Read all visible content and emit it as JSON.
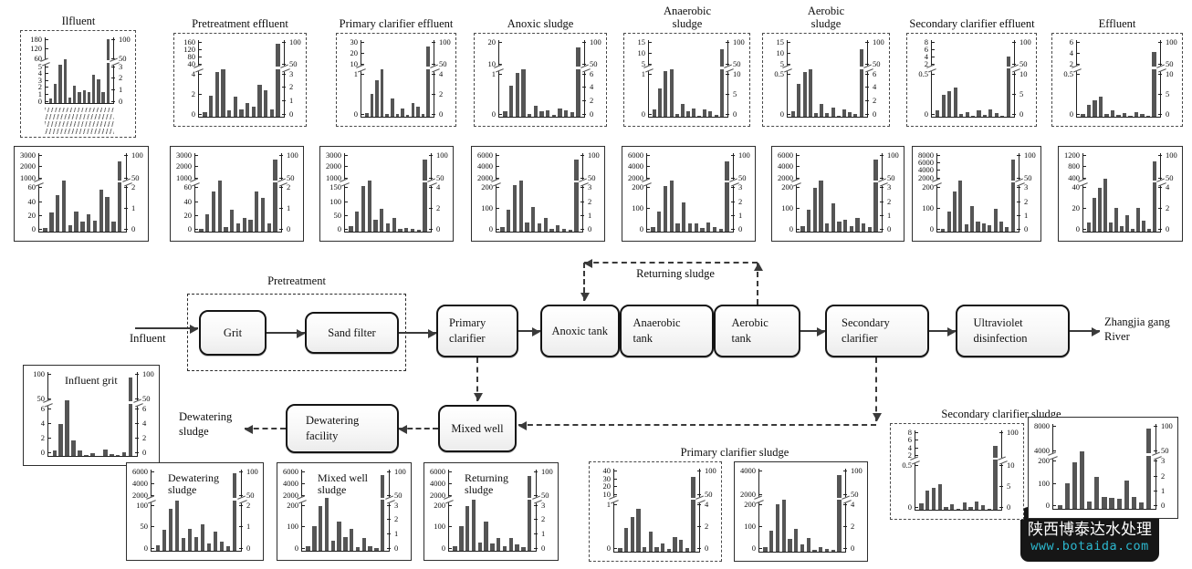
{
  "flow": {
    "influent_label": "Influent",
    "pretreatment_label": "Pretreatment",
    "returning_sludge_label": "Returning sludge",
    "dewatering_sludge_label": "Dewatering sludge",
    "river_label": "Zhangjia gang River",
    "boxes": [
      {
        "id": "grit",
        "label": "Grit"
      },
      {
        "id": "sand-filter",
        "label": "Sand filter"
      },
      {
        "id": "primary-clarifier",
        "label": "Primary clarifier"
      },
      {
        "id": "anoxic-tank",
        "label": "Anoxic tank"
      },
      {
        "id": "anaerobic-tank",
        "label": "Anaerobic tank"
      },
      {
        "id": "aerobic-tank",
        "label": "Aerobic tank"
      },
      {
        "id": "secondary-clarifier",
        "label": "Secondary clarifier"
      },
      {
        "id": "uv",
        "label": "Ultraviolet disinfection"
      },
      {
        "id": "mixed-well",
        "label": "Mixed well"
      },
      {
        "id": "dewatering-facility",
        "label": "Dewatering facility"
      }
    ]
  },
  "group_labels": {
    "primary": "Primary clarifier sludge",
    "secondary": "Secondary clarifier sludge"
  },
  "watermark": {
    "line1": "陕西博泰达水处理",
    "line2": "www.botaida.com",
    "accent_color": "#2cb8cf",
    "bg_color": "#161616"
  },
  "chart_data": {
    "type": "bar",
    "bar_color": "#555555",
    "note": "Each panel shows 13 compound bars with a broken (split) y-axis; left axis = concentration, right axis = removal/percent scale ending at 100. X tick labels are illegible compound names in the source figure. Bar values are fractions of plot height.",
    "panels": [
      {
        "id": "t1",
        "title": "Ilfluent",
        "place": "above",
        "border": "dashed",
        "x_labels": true,
        "left_upper": [
          "180",
          "120",
          "60"
        ],
        "left_lower": [
          "5",
          "4",
          "3",
          "2",
          "1",
          "0"
        ],
        "right_upper": [
          "100",
          "50"
        ],
        "right_lower": [
          "3",
          "2",
          "1",
          "0"
        ],
        "bars": [
          0.07,
          0.29,
          0.59,
          0.66,
          0.09,
          0.26,
          0.17,
          0.2,
          0.16,
          0.43,
          0.36,
          0.16,
          0.97
        ]
      },
      {
        "id": "t2",
        "title": "Pretreatment effluent",
        "place": "above",
        "border": "dashed",
        "left_upper": [
          "160",
          "120",
          "80",
          "40"
        ],
        "left_lower": [
          "4",
          "2",
          "0"
        ],
        "right_upper": [
          "100",
          "50"
        ],
        "right_lower": [
          "3",
          "2",
          "1",
          "0"
        ],
        "bars": [
          0.06,
          0.27,
          0.58,
          0.62,
          0.08,
          0.26,
          0.1,
          0.18,
          0.13,
          0.42,
          0.34,
          0.1,
          0.95
        ]
      },
      {
        "id": "t3",
        "title": "Primary clarifier effluent",
        "place": "above",
        "border": "dashed",
        "left_upper": [
          "30",
          "20",
          "10"
        ],
        "left_lower": [
          "1",
          "0"
        ],
        "right_upper": [
          "100",
          "50"
        ],
        "right_lower": [
          "4",
          "2",
          "0"
        ],
        "bars": [
          0.05,
          0.3,
          0.48,
          0.62,
          0.04,
          0.24,
          0.04,
          0.11,
          0.02,
          0.18,
          0.13,
          0.04,
          0.92
        ]
      },
      {
        "id": "t4",
        "title": "Anoxic sludge",
        "place": "above",
        "border": "dashed",
        "left_upper": [
          "20",
          "10"
        ],
        "left_lower": [
          "1",
          "0"
        ],
        "right_upper": [
          "100",
          "50"
        ],
        "right_lower": [
          "6",
          "4",
          "2",
          "0"
        ],
        "bars": [
          0.07,
          0.41,
          0.57,
          0.62,
          0.04,
          0.14,
          0.07,
          0.08,
          0.02,
          0.11,
          0.08,
          0.06,
          0.9
        ]
      },
      {
        "id": "t5",
        "title": "Anaerobic sludge",
        "place": "above",
        "border": "dashed",
        "left_upper": [
          "15",
          "10",
          "5"
        ],
        "left_lower": [
          "1",
          "0"
        ],
        "right_upper": [
          "100",
          "50"
        ],
        "right_lower": [
          "10",
          "5",
          "0"
        ],
        "bars": [
          0.09,
          0.37,
          0.59,
          0.62,
          0.04,
          0.17,
          0.07,
          0.11,
          0.01,
          0.09,
          0.07,
          0.02,
          0.88
        ]
      },
      {
        "id": "t6",
        "title": "Aerobic sludge",
        "place": "above",
        "border": "dashed",
        "left_upper": [
          "15",
          "10",
          "5"
        ],
        "left_lower": [
          "0.5",
          "0"
        ],
        "right_upper": [
          "100",
          "50"
        ],
        "right_lower": [
          "6",
          "4",
          "2",
          "0"
        ],
        "bars": [
          0.07,
          0.43,
          0.58,
          0.62,
          0.05,
          0.17,
          0.05,
          0.12,
          0.01,
          0.1,
          0.06,
          0.03,
          0.88
        ]
      },
      {
        "id": "t7",
        "title": "Secondary clarifier effluent",
        "place": "above",
        "border": "dashed",
        "left_upper": [
          "8",
          "6",
          "4",
          "2"
        ],
        "left_lower": [
          "0.5",
          "0"
        ],
        "right_upper": [
          "100",
          "50"
        ],
        "right_lower": [
          "10",
          "5",
          "0"
        ],
        "bars": [
          0.08,
          0.28,
          0.33,
          0.38,
          0.03,
          0.06,
          0.01,
          0.08,
          0.02,
          0.1,
          0.05,
          0.01,
          0.78
        ]
      },
      {
        "id": "t8",
        "title": "Effluent",
        "place": "above",
        "border": "dashed",
        "left_upper": [
          "6",
          "4",
          "2"
        ],
        "left_lower": [
          "0.5",
          "0"
        ],
        "right_upper": [
          "100",
          "50"
        ],
        "right_lower": [
          "10",
          "5",
          "0"
        ],
        "bars": [
          0.03,
          0.16,
          0.22,
          0.26,
          0.03,
          0.08,
          0.02,
          0.05,
          0.01,
          0.06,
          0.03,
          0.01,
          0.85
        ]
      },
      {
        "id": "r1",
        "border": "solid",
        "left_upper": [
          "3000",
          "2000",
          "1000"
        ],
        "left_lower": [
          "60",
          "40",
          "20",
          "0"
        ],
        "right_upper": [
          "100",
          "50"
        ],
        "right_lower": [
          "2",
          "1",
          "0"
        ],
        "bars": [
          0.05,
          0.24,
          0.47,
          0.65,
          0.08,
          0.26,
          0.13,
          0.22,
          0.14,
          0.54,
          0.44,
          0.13,
          0.9
        ]
      },
      {
        "id": "r2",
        "border": "solid",
        "left_upper": [
          "3000",
          "2000",
          "1000"
        ],
        "left_lower": [
          "60",
          "40",
          "20",
          "0"
        ],
        "right_upper": [
          "100",
          "50"
        ],
        "right_lower": [
          "2",
          "1",
          "0"
        ],
        "bars": [
          0.04,
          0.22,
          0.51,
          0.65,
          0.06,
          0.28,
          0.11,
          0.18,
          0.15,
          0.51,
          0.43,
          0.11,
          0.92
        ]
      },
      {
        "id": "r3",
        "border": "solid",
        "left_upper": [
          "3000",
          "2000",
          "1000"
        ],
        "left_lower": [
          "150",
          "100",
          "50",
          "0"
        ],
        "right_upper": [
          "100",
          "50"
        ],
        "right_lower": [
          "4",
          "2",
          "0"
        ],
        "bars": [
          0.07,
          0.26,
          0.58,
          0.65,
          0.15,
          0.29,
          0.11,
          0.17,
          0.03,
          0.05,
          0.03,
          0.02,
          0.92
        ]
      },
      {
        "id": "r4",
        "border": "solid",
        "left_upper": [
          "6000",
          "4000",
          "2000"
        ],
        "left_lower": [
          "200",
          "100",
          "0"
        ],
        "right_upper": [
          "100",
          "50"
        ],
        "right_lower": [
          "3",
          "2",
          "1",
          "0"
        ],
        "bars": [
          0.06,
          0.28,
          0.59,
          0.65,
          0.12,
          0.31,
          0.1,
          0.18,
          0.03,
          0.08,
          0.04,
          0.02,
          0.92
        ]
      },
      {
        "id": "r5",
        "border": "solid",
        "left_upper": [
          "6000",
          "4000",
          "2000"
        ],
        "left_lower": [
          "200",
          "100",
          "0"
        ],
        "right_upper": [
          "100",
          "50"
        ],
        "right_lower": [
          "3",
          "2",
          "1",
          "0"
        ],
        "bars": [
          0.06,
          0.26,
          0.58,
          0.65,
          0.11,
          0.37,
          0.1,
          0.11,
          0.05,
          0.12,
          0.06,
          0.03,
          0.9
        ]
      },
      {
        "id": "r6",
        "border": "solid",
        "left_upper": [
          "6000",
          "4000",
          "2000"
        ],
        "left_lower": [
          "200",
          "100",
          "0"
        ],
        "right_upper": [
          "100",
          "50"
        ],
        "right_lower": [
          "3",
          "2",
          "1",
          "0"
        ],
        "bars": [
          0.07,
          0.28,
          0.56,
          0.65,
          0.11,
          0.36,
          0.13,
          0.15,
          0.07,
          0.17,
          0.11,
          0.06,
          0.92
        ]
      },
      {
        "id": "r7",
        "border": "solid",
        "left_upper": [
          "8000",
          "6000",
          "4000",
          "2000"
        ],
        "left_lower": [
          "200",
          "100",
          "0"
        ],
        "right_upper": [
          "100",
          "50"
        ],
        "right_lower": [
          "3",
          "2",
          "1",
          "0"
        ],
        "bars": [
          0.04,
          0.26,
          0.51,
          0.65,
          0.09,
          0.33,
          0.13,
          0.11,
          0.08,
          0.29,
          0.13,
          0.06,
          0.92
        ]
      },
      {
        "id": "r8",
        "border": "solid",
        "left_upper": [
          "1200",
          "800",
          "400"
        ],
        "left_lower": [
          "40",
          "20",
          "0"
        ],
        "right_upper": [
          "100",
          "50"
        ],
        "right_lower": [
          "4",
          "2",
          "0"
        ],
        "bars": [
          0.12,
          0.43,
          0.56,
          0.68,
          0.12,
          0.3,
          0.07,
          0.21,
          0.04,
          0.3,
          0.14,
          0.03,
          0.9
        ]
      },
      {
        "id": "grit-chart",
        "title": "Influent grit",
        "place": "inside",
        "border": "solid",
        "left_upper": [
          "100",
          "50"
        ],
        "left_lower": [
          "6",
          "4",
          "2",
          "0"
        ],
        "right_upper": [
          "100",
          "50"
        ],
        "right_lower": [
          "6",
          "4",
          "2",
          "0"
        ],
        "bars": [
          0.07,
          0.38,
          0.66,
          0.19,
          0.06,
          0.01,
          0.03,
          0.0,
          0.08,
          0.02,
          0.01,
          0.04,
          0.93
        ]
      },
      {
        "id": "dew",
        "title": "Dewatering sludge",
        "place": "inside",
        "border": "solid",
        "left_upper": [
          "6000",
          "4000",
          "2000"
        ],
        "left_lower": [
          "100",
          "50",
          "0"
        ],
        "right_upper": [
          "100",
          "50"
        ],
        "right_lower": [
          "2",
          "1",
          "0"
        ],
        "bars": [
          0.07,
          0.26,
          0.52,
          0.62,
          0.16,
          0.27,
          0.17,
          0.33,
          0.09,
          0.24,
          0.11,
          0.06,
          0.95
        ]
      },
      {
        "id": "mix",
        "title": "Mixed well sludge",
        "place": "inside",
        "border": "solid",
        "left_upper": [
          "6000",
          "4000",
          "2000"
        ],
        "left_lower": [
          "200",
          "100",
          "0"
        ],
        "right_upper": [
          "100",
          "50"
        ],
        "right_lower": [
          "3",
          "2",
          "1",
          "0"
        ],
        "bars": [
          0.06,
          0.3,
          0.55,
          0.65,
          0.12,
          0.36,
          0.17,
          0.27,
          0.05,
          0.16,
          0.06,
          0.03,
          0.93
        ]
      },
      {
        "id": "ret",
        "title": "Returning sludge",
        "place": "inside",
        "border": "solid",
        "left_upper": [
          "6000",
          "4000",
          "2000"
        ],
        "left_lower": [
          "200",
          "100",
          "0"
        ],
        "right_upper": [
          "100",
          "50"
        ],
        "right_lower": [
          "3",
          "2",
          "1",
          "0"
        ],
        "bars": [
          0.06,
          0.3,
          0.55,
          0.63,
          0.1,
          0.36,
          0.09,
          0.16,
          0.06,
          0.16,
          0.08,
          0.05,
          0.92
        ]
      },
      {
        "id": "pcsa",
        "border": "dashed",
        "left_upper": [
          "40",
          "30",
          "20",
          "10"
        ],
        "left_lower": [
          "1",
          "0"
        ],
        "right_upper": [
          "100",
          "50"
        ],
        "right_lower": [
          "4",
          "2",
          "0"
        ],
        "bars": [
          0.04,
          0.29,
          0.42,
          0.52,
          0.05,
          0.24,
          0.05,
          0.1,
          0.03,
          0.18,
          0.14,
          0.04,
          0.9
        ]
      },
      {
        "id": "pcsb",
        "border": "solid",
        "left_upper": [
          "4000",
          "2000"
        ],
        "left_lower": [
          "200",
          "100",
          "0"
        ],
        "right_upper": [
          "100",
          "50"
        ],
        "right_lower": [
          "4",
          "2",
          "0"
        ],
        "bars": [
          0.05,
          0.25,
          0.57,
          0.63,
          0.15,
          0.28,
          0.09,
          0.17,
          0.02,
          0.05,
          0.03,
          0.02,
          0.92
        ]
      },
      {
        "id": "scsa",
        "border": "dashed",
        "left_upper": [
          "8",
          "6",
          "4",
          "2"
        ],
        "left_lower": [
          "0.5",
          "0"
        ],
        "right_upper": [
          "100"
        ],
        "right_lower": [
          "10",
          "5",
          "0"
        ],
        "bars": [
          0.08,
          0.24,
          0.28,
          0.32,
          0.03,
          0.07,
          0.01,
          0.09,
          0.03,
          0.1,
          0.06,
          0.01,
          0.8
        ]
      },
      {
        "id": "scsb",
        "border": "solid",
        "left_upper": [
          "8000",
          "4000"
        ],
        "left_lower": [
          "200",
          "100",
          "0"
        ],
        "right_upper": [
          "100",
          "50"
        ],
        "right_lower": [
          "3",
          "2",
          "1",
          "0"
        ],
        "bars": [
          0.04,
          0.3,
          0.55,
          0.68,
          0.09,
          0.38,
          0.14,
          0.13,
          0.12,
          0.33,
          0.14,
          0.08,
          0.95
        ]
      }
    ]
  }
}
